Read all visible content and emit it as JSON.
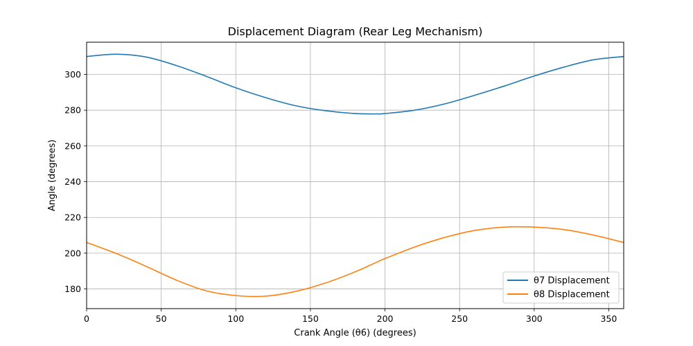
{
  "chart_data": {
    "type": "line",
    "title": "Displacement Diagram (Rear Leg Mechanism)",
    "xlabel": "Crank Angle (θ6) (degrees)",
    "ylabel": "Angle (degrees)",
    "xlim": [
      0,
      360
    ],
    "ylim": [
      169,
      318
    ],
    "xticks": [
      0,
      50,
      100,
      150,
      200,
      250,
      300,
      350
    ],
    "yticks": [
      180,
      200,
      220,
      240,
      260,
      280,
      300
    ],
    "grid": true,
    "legend_position": "bottom-right",
    "x": [
      0,
      20,
      40,
      60,
      80,
      100,
      120,
      140,
      160,
      180,
      195,
      200,
      220,
      240,
      260,
      280,
      300,
      320,
      340,
      360
    ],
    "series": [
      {
        "name": "θ7 Displacement",
        "color": "#1f77b4",
        "values": [
          310,
          311.3,
          309.7,
          305,
          299,
          292.5,
          287,
          282.5,
          279.7,
          278.1,
          277.9,
          278.1,
          280,
          283.5,
          288.3,
          293.5,
          299.1,
          304.1,
          308.2,
          310
        ]
      },
      {
        "name": "θ8 Displacement",
        "color": "#ff7f0e",
        "values": [
          206,
          199.8,
          192.6,
          185,
          179,
          176.3,
          176,
          178.6,
          183.3,
          189.6,
          195.2,
          197,
          203.5,
          208.8,
          212.7,
          214.6,
          214.6,
          213.2,
          210.1,
          206
        ]
      }
    ]
  }
}
